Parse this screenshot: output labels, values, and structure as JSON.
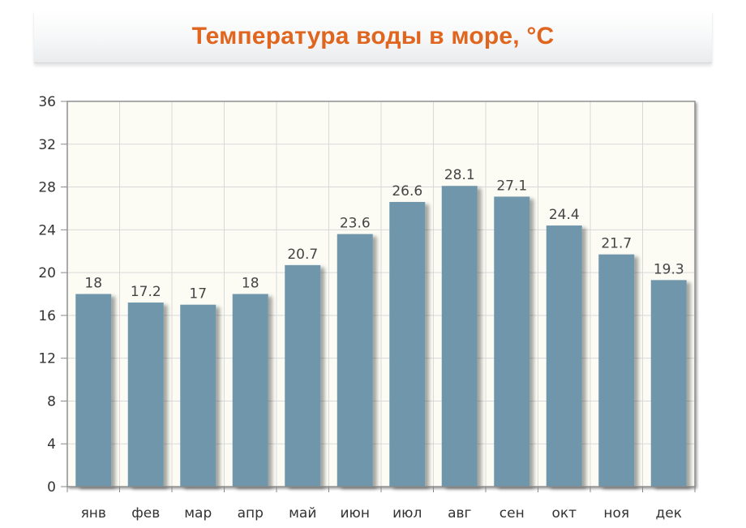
{
  "chart_data": {
    "type": "bar",
    "title": "Температура воды в море, °C",
    "categories": [
      "янв",
      "фев",
      "мар",
      "апр",
      "май",
      "июн",
      "июл",
      "авг",
      "сен",
      "окт",
      "ноя",
      "дек"
    ],
    "values": [
      18,
      17.2,
      17,
      18,
      20.7,
      23.6,
      26.6,
      28.1,
      27.1,
      24.4,
      21.7,
      19.3
    ],
    "value_labels": [
      "18",
      "17.2",
      "17",
      "18",
      "20.7",
      "23.6",
      "26.6",
      "28.1",
      "27.1",
      "24.4",
      "21.7",
      "19.3"
    ],
    "y_ticks": [
      0,
      4,
      8,
      12,
      16,
      20,
      24,
      28,
      32,
      36
    ],
    "ylim": [
      0,
      36
    ],
    "grid": true,
    "legend": "none",
    "colors": {
      "bar": "#6f96ab",
      "plot_bg": "#fcfcf5",
      "grid": "#d9d9d9",
      "axis": "#888888",
      "title": "#e0661f"
    }
  }
}
